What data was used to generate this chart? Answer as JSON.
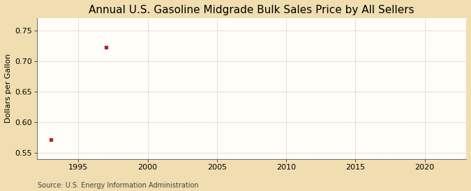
{
  "title": "Annual U.S. Gasoline Midgrade Bulk Sales Price by All Sellers",
  "ylabel": "Dollars per Gallon",
  "source": "Source: U.S. Energy Information Administration",
  "data_x": [
    1993,
    1997
  ],
  "data_y": [
    0.572,
    0.722
  ],
  "marker_color": "#bb2222",
  "marker_size": 3.5,
  "xlim": [
    1992,
    2023
  ],
  "ylim": [
    0.54,
    0.77
  ],
  "xticks": [
    1995,
    2000,
    2005,
    2010,
    2015,
    2020
  ],
  "yticks": [
    0.55,
    0.6,
    0.65,
    0.7,
    0.75
  ],
  "background_color": "#f0deb0",
  "plot_bg_color": "#fffef8",
  "grid_color": "#bbbbbb",
  "title_fontsize": 11,
  "axis_fontsize": 8,
  "tick_fontsize": 8,
  "source_fontsize": 7
}
